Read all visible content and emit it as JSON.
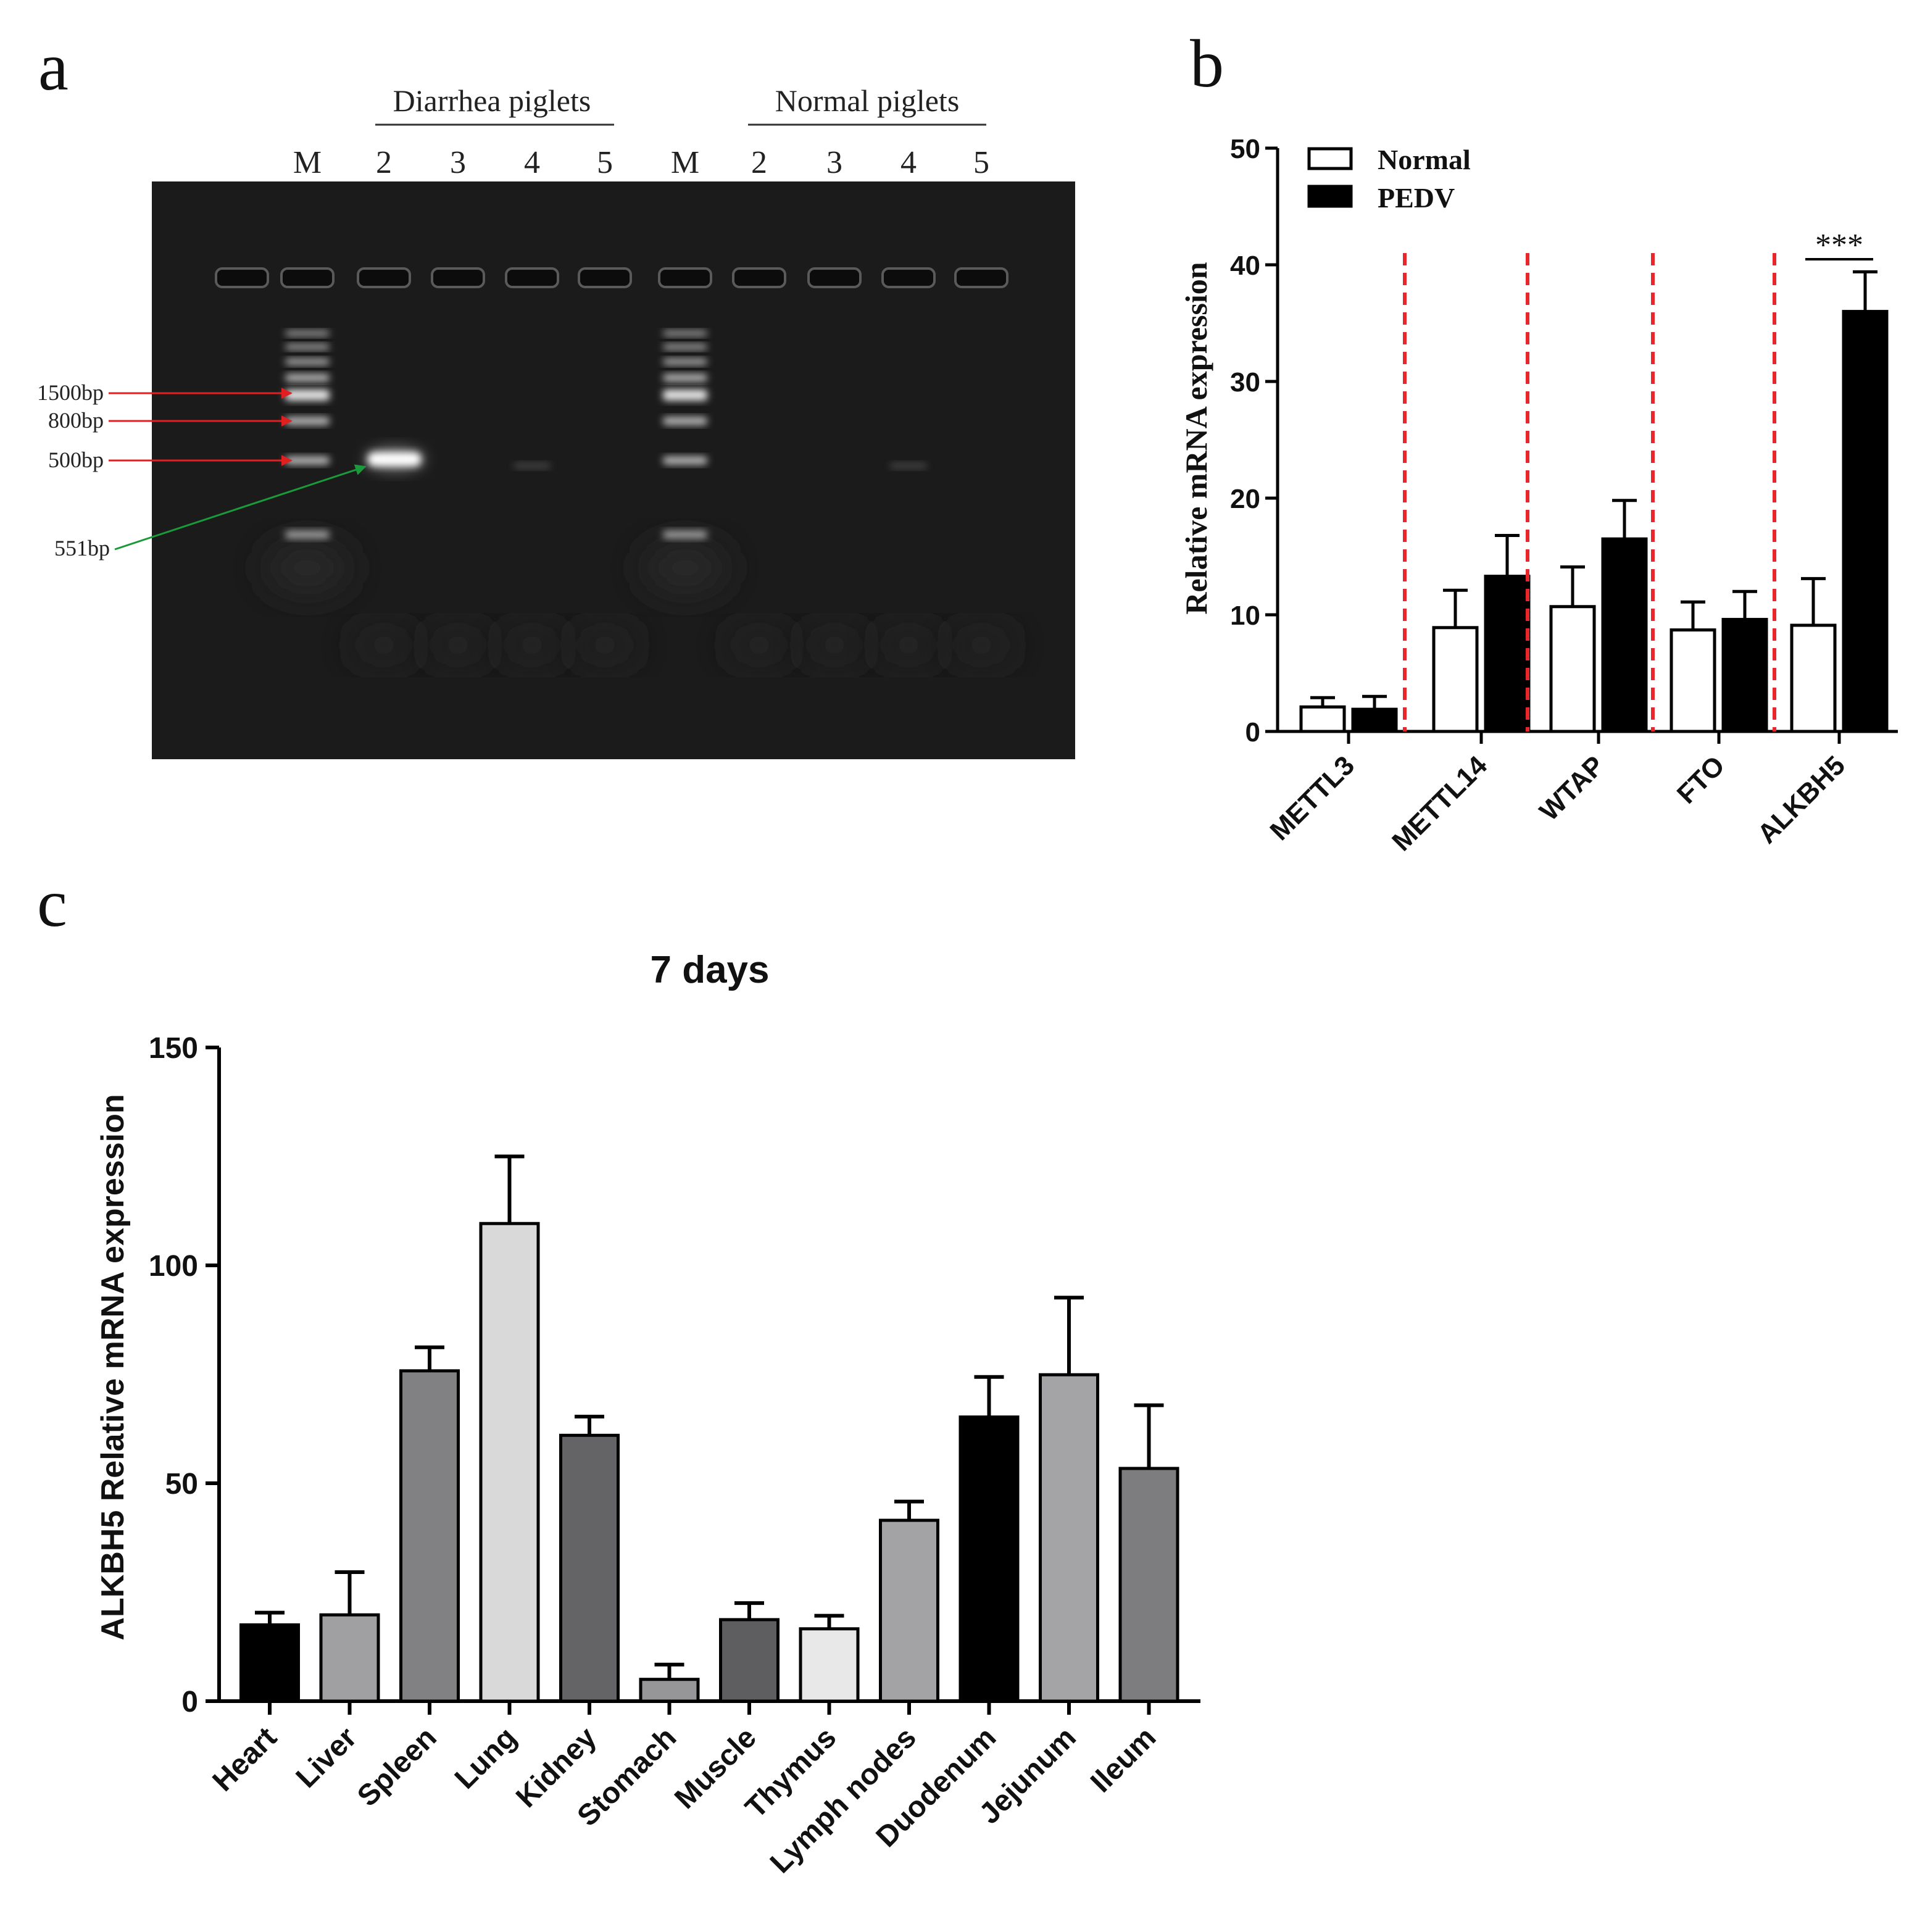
{
  "panel_a": {
    "letter": "a",
    "group_labels": [
      "Diarrhea piglets",
      "Normal piglets"
    ],
    "lane_labels": [
      "M",
      "2",
      "3",
      "4",
      "5",
      "M",
      "2",
      "3",
      "4",
      "5"
    ],
    "marker_labels": [
      "1500bp",
      "800bp",
      "500bp"
    ],
    "product_label": "551bp",
    "colors": {
      "gel": "#1b1b1b",
      "marker_arrow": "#e02020",
      "product_arrow": "#1a9a3a"
    }
  },
  "panel_b": {
    "letter": "b",
    "chart_data": {
      "type": "bar",
      "categories": [
        "METTL3",
        "METTL14",
        "WTAP",
        "FTO",
        "ALKBH5"
      ],
      "series": [
        {
          "name": "Normal",
          "values": [
            2.1,
            8.9,
            10.7,
            8.7,
            9.1
          ],
          "errors": [
            0.8,
            3.2,
            3.4,
            2.4,
            4.0
          ],
          "color": "#ffffff"
        },
        {
          "name": "PEDV",
          "values": [
            1.9,
            13.3,
            16.5,
            9.6,
            36.0
          ],
          "errors": [
            1.1,
            3.5,
            3.3,
            2.4,
            3.4
          ],
          "color": "#000000"
        }
      ],
      "ylabel": "Relative mRNA expression",
      "ylim": [
        0,
        50
      ],
      "yticks": [
        0,
        10,
        20,
        30,
        40,
        50
      ],
      "significance": {
        "category": "ALKBH5",
        "label": "***"
      },
      "legend_position": "top-left",
      "separator_color": "#e8262b"
    }
  },
  "panel_c": {
    "letter": "c",
    "chart_data": {
      "type": "bar",
      "title": "7 days",
      "categories": [
        "Heart",
        "Liver",
        "Spleen",
        "Lung",
        "Kidney",
        "Stomach",
        "Muscle",
        "Thymus",
        "Lymph nodes",
        "Duodenum",
        "Jejunum",
        "Ileum"
      ],
      "values": [
        17.5,
        19.8,
        75.8,
        109.6,
        61.0,
        5.0,
        18.7,
        16.6,
        41.5,
        65.2,
        74.9,
        53.4
      ],
      "errors": [
        2.8,
        9.8,
        5.4,
        15.4,
        4.3,
        3.4,
        3.8,
        3.0,
        4.3,
        9.2,
        17.7,
        14.5
      ],
      "colors": [
        "#000000",
        "#a0a0a3",
        "#818183",
        "#d9d9d9",
        "#646466",
        "#969698",
        "#5e5e60",
        "#e8e8e8",
        "#a3a3a5",
        "#000000",
        "#a4a4a6",
        "#7d7d7f"
      ],
      "ylabel": "ALKBH5 Relative mRNA expression",
      "ylim": [
        0,
        150
      ],
      "yticks": [
        0,
        50,
        100,
        150
      ]
    }
  }
}
